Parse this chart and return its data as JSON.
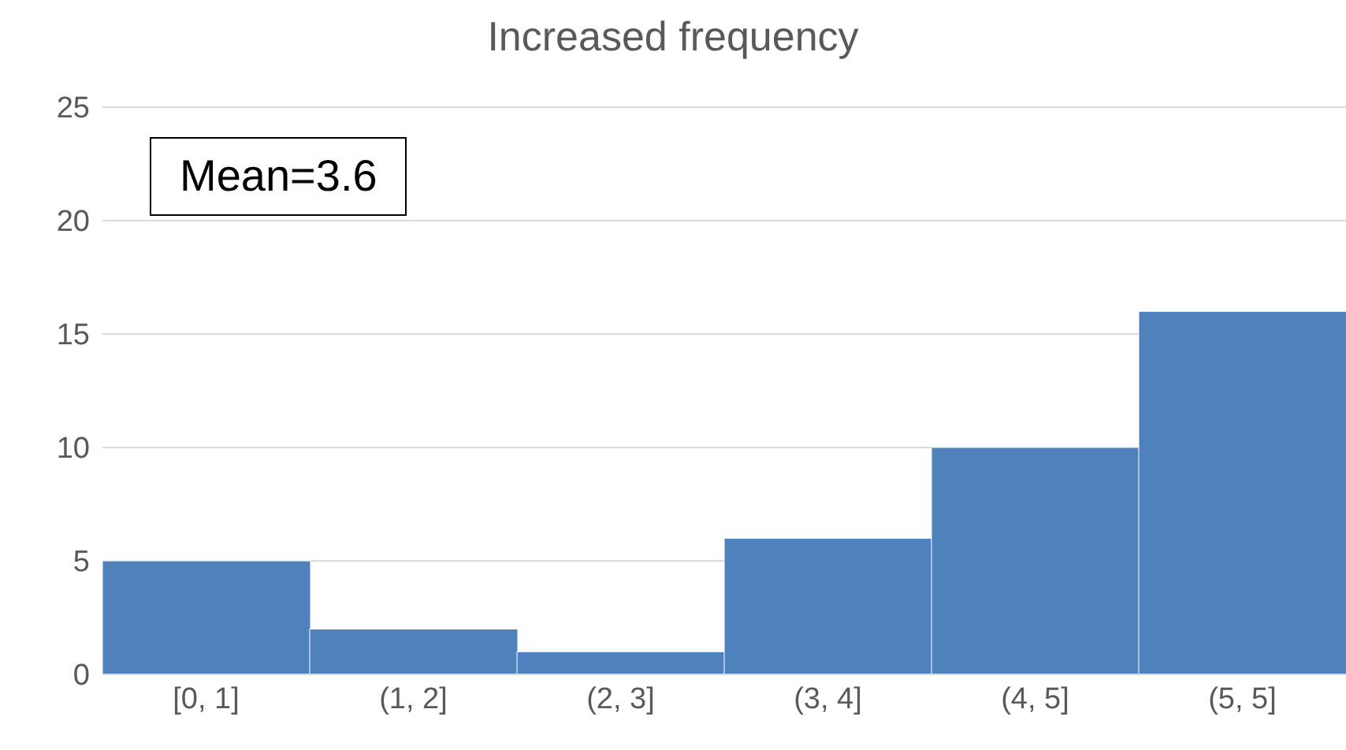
{
  "chart_data": {
    "type": "bar",
    "title": "Increased frequency",
    "categories": [
      "[0, 1]",
      "(1, 2]",
      "(2, 3]",
      "(3, 4]",
      "(4, 5]",
      "(5, 5]"
    ],
    "values": [
      5,
      2,
      1,
      6,
      10,
      16
    ],
    "color": "#4f81bd",
    "ylim": [
      0,
      25
    ],
    "yticks": [
      0,
      5,
      10,
      15,
      20,
      25
    ],
    "grid": "y",
    "annotations": [
      "Mean=3.6"
    ]
  }
}
